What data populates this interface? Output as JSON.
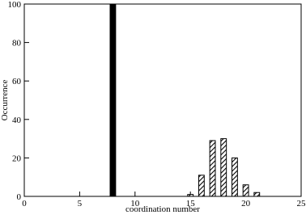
{
  "chart_data": {
    "type": "bar",
    "xlabel": "coordination number",
    "ylabel": "Occurrence",
    "series": [
      {
        "color": "#000000",
        "hatch": false,
        "x": [
          8
        ],
        "values": [
          100
        ]
      },
      {
        "color": "#000000",
        "hatch": true,
        "x": [
          15,
          16,
          17,
          18,
          19,
          20,
          21
        ],
        "values": [
          1,
          11,
          29,
          30,
          20,
          6,
          2
        ]
      }
    ],
    "xlim": [
      0,
      25
    ],
    "xticks": [
      0,
      5,
      10,
      15,
      20,
      25
    ],
    "ylim": [
      0,
      100
    ],
    "yticks": [
      0,
      20,
      40,
      60,
      80,
      100
    ],
    "grid": false
  }
}
